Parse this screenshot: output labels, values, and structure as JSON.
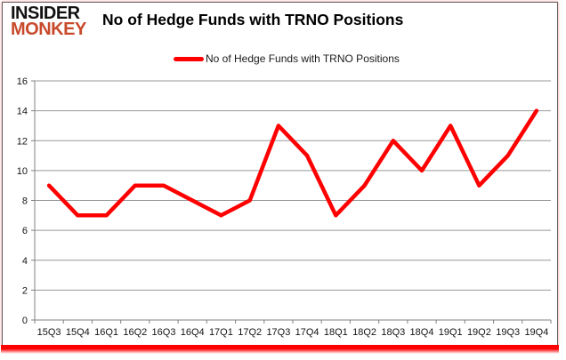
{
  "logo": {
    "line1": "INSIDER",
    "line2": "MONKEY"
  },
  "header": {
    "title": "No of Hedge Funds with TRNO Positions"
  },
  "legend": {
    "label": "No of Hedge Funds with TRNO Positions"
  },
  "colors": {
    "line": "#ff0000",
    "grid": "#999999",
    "axis": "#808080",
    "logo_black": "#111111",
    "logo_red": "#c84a2c",
    "frame_border": "#5f5f5f",
    "bottom_glow": "#ff0000"
  },
  "chart_data": {
    "type": "line",
    "title": "No of Hedge Funds with TRNO Positions",
    "xlabel": "",
    "ylabel": "",
    "categories": [
      "15Q3",
      "15Q4",
      "16Q1",
      "16Q2",
      "16Q3",
      "16Q4",
      "17Q1",
      "17Q2",
      "17Q3",
      "17Q4",
      "18Q1",
      "18Q2",
      "18Q3",
      "18Q4",
      "19Q1",
      "19Q2",
      "19Q3",
      "19Q4"
    ],
    "series": [
      {
        "name": "No of Hedge Funds with TRNO Positions",
        "color": "#ff0000",
        "values": [
          9,
          7,
          7,
          9,
          9,
          8,
          7,
          8,
          13,
          11,
          7,
          9,
          12,
          10,
          13,
          9,
          11,
          14
        ]
      }
    ],
    "ylim": [
      0,
      16
    ],
    "yticks": [
      0,
      2,
      4,
      6,
      8,
      10,
      12,
      14,
      16
    ],
    "grid": true,
    "legend_position": "top-center"
  }
}
